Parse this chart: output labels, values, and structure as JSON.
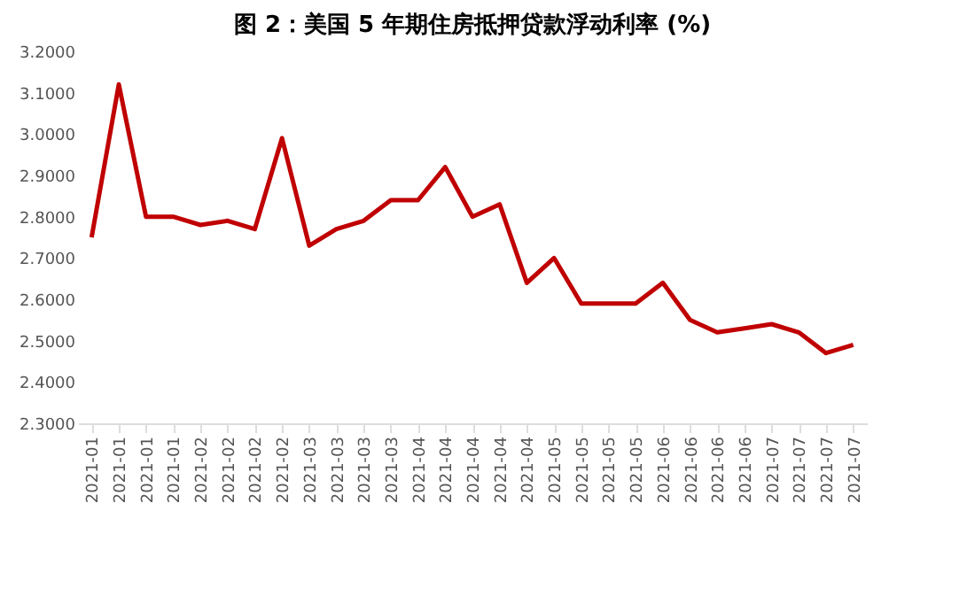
{
  "chart_data": {
    "type": "line",
    "title": "图 2：美国 5 年期住房抵押贷款浮动利率 (%)",
    "categories": [
      "2021-01",
      "2021-01",
      "2021-01",
      "2021-01",
      "2021-02",
      "2021-02",
      "2021-02",
      "2021-02",
      "2021-03",
      "2021-03",
      "2021-03",
      "2021-03",
      "2021-04",
      "2021-04",
      "2021-04",
      "2021-04",
      "2021-04",
      "2021-05",
      "2021-05",
      "2021-05",
      "2021-05",
      "2021-06",
      "2021-06",
      "2021-06",
      "2021-06",
      "2021-07",
      "2021-07",
      "2021-07",
      "2021-07"
    ],
    "series": [
      {
        "color": "#c00000",
        "values": [
          2.75,
          3.12,
          2.8,
          2.8,
          2.78,
          2.79,
          2.77,
          2.99,
          2.73,
          2.77,
          2.79,
          2.84,
          2.84,
          2.92,
          2.8,
          2.83,
          2.64,
          2.7,
          2.59,
          2.59,
          2.59,
          2.64,
          2.55,
          2.52,
          2.53,
          2.54,
          2.52,
          2.47,
          2.49
        ]
      }
    ],
    "ylim": [
      2.3,
      3.2
    ],
    "yticks": [
      {
        "value": 2.3,
        "label": "2.3000"
      },
      {
        "value": 2.4,
        "label": "2.4000"
      },
      {
        "value": 2.5,
        "label": "2.5000"
      },
      {
        "value": 2.6,
        "label": "2.6000"
      },
      {
        "value": 2.7,
        "label": "2.7000"
      },
      {
        "value": 2.8,
        "label": "2.8000"
      },
      {
        "value": 2.9,
        "label": "2.9000"
      },
      {
        "value": 3.0,
        "label": "3.0000"
      },
      {
        "value": 3.1,
        "label": "3.1000"
      },
      {
        "value": 3.2,
        "label": "3.2000"
      }
    ],
    "grid": false,
    "legend": false,
    "marker": "none",
    "line_style": "solid"
  }
}
